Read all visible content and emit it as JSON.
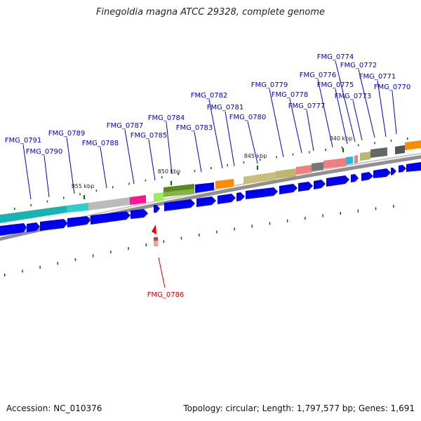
{
  "title": "Finegoldia magna ATCC 29328, complete genome",
  "footer": {
    "accession": "Accession: NC_010376",
    "summary": "Topology: circular; Length: 1,797,577 bp; Genes: 1,691"
  },
  "colors": {
    "forward_cds": "#0000ee",
    "label_line": "#0000cc",
    "highlight_label": "#cc0000",
    "backbone": "#888888",
    "tick": "#006600"
  },
  "kbp_labels": [
    {
      "text": "855 kbp"
    },
    {
      "text": "850 kbp"
    },
    {
      "text": "845 kbp"
    },
    {
      "text": "840 kbp"
    }
  ],
  "gene_labels": [
    {
      "text": "FMG_0791"
    },
    {
      "text": "FMG_0790"
    },
    {
      "text": "FMG_0789"
    },
    {
      "text": "FMG_0788"
    },
    {
      "text": "FMG_0787"
    },
    {
      "text": "FMG_0785"
    },
    {
      "text": "FMG_0784"
    },
    {
      "text": "FMG_0783"
    },
    {
      "text": "FMG_0782"
    },
    {
      "text": "FMG_0781"
    },
    {
      "text": "FMG_0780"
    },
    {
      "text": "FMG_0779"
    },
    {
      "text": "FMG_0778"
    },
    {
      "text": "FMG_0777"
    },
    {
      "text": "FMG_0776"
    },
    {
      "text": "FMG_0775"
    },
    {
      "text": "FMG_0774"
    },
    {
      "text": "FMG_0773"
    },
    {
      "text": "FMG_0772"
    },
    {
      "text": "FMG_0771"
    },
    {
      "text": "FMG_0770"
    }
  ],
  "highlight_gene": {
    "text": "FMG_0786"
  }
}
